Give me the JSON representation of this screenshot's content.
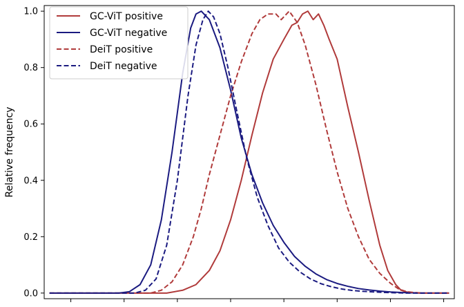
{
  "chart_data": {
    "type": "line",
    "title": "",
    "xlabel": "",
    "ylabel": "Relative frequency",
    "xlim": [
      -0.1,
      7.6
    ],
    "ylim": [
      -0.02,
      1.02
    ],
    "yticks": [
      0.0,
      0.2,
      0.4,
      0.6,
      0.8,
      1.0
    ],
    "ytick_labels": [
      "0.0",
      "0.2",
      "0.4",
      "0.6",
      "0.8",
      "1.0"
    ],
    "xticks": [
      0.4,
      1.4,
      2.4,
      3.4,
      4.4,
      5.4,
      6.4,
      7.4
    ],
    "grid": false,
    "legend_position": "top-left",
    "series": [
      {
        "name": "GC-ViT positive",
        "color": "#b03a3a",
        "dash": "solid",
        "x": [
          0,
          2.2,
          2.5,
          2.75,
          3.0,
          3.2,
          3.4,
          3.6,
          3.8,
          4.0,
          4.2,
          4.4,
          4.55,
          4.65,
          4.75,
          4.85,
          4.95,
          5.05,
          5.15,
          5.25,
          5.4,
          5.6,
          5.8,
          6.0,
          6.2,
          6.35,
          6.5,
          6.6,
          6.7,
          6.85,
          7.0,
          7.2,
          7.5
        ],
        "y": [
          0,
          0,
          0.01,
          0.03,
          0.08,
          0.15,
          0.26,
          0.4,
          0.56,
          0.71,
          0.83,
          0.9,
          0.95,
          0.96,
          0.99,
          1.0,
          0.97,
          0.99,
          0.95,
          0.9,
          0.83,
          0.66,
          0.5,
          0.33,
          0.17,
          0.08,
          0.03,
          0.01,
          0.004,
          0.001,
          0,
          0,
          0
        ]
      },
      {
        "name": "GC-ViT negative",
        "color": "#1a1a80",
        "dash": "solid",
        "x": [
          0,
          1.3,
          1.5,
          1.7,
          1.9,
          2.1,
          2.3,
          2.5,
          2.65,
          2.75,
          2.85,
          3.0,
          3.2,
          3.4,
          3.6,
          3.8,
          4.0,
          4.2,
          4.4,
          4.6,
          4.8,
          5.0,
          5.2,
          5.4,
          5.6,
          5.8,
          6.0,
          6.2,
          6.4,
          6.6,
          6.8,
          7.0,
          7.5
        ],
        "y": [
          0,
          0,
          0.005,
          0.03,
          0.1,
          0.26,
          0.5,
          0.78,
          0.94,
          0.99,
          1.0,
          0.97,
          0.87,
          0.72,
          0.55,
          0.42,
          0.32,
          0.24,
          0.18,
          0.13,
          0.095,
          0.068,
          0.048,
          0.034,
          0.024,
          0.016,
          0.011,
          0.007,
          0.004,
          0.002,
          0.001,
          0,
          0
        ]
      },
      {
        "name": "DeiT positive",
        "color": "#b03a3a",
        "dash": "dashed",
        "x": [
          0,
          1.9,
          2.1,
          2.3,
          2.5,
          2.7,
          2.85,
          3.0,
          3.2,
          3.4,
          3.6,
          3.8,
          3.95,
          4.1,
          4.25,
          4.35,
          4.5,
          4.65,
          4.8,
          5.0,
          5.2,
          5.4,
          5.6,
          5.8,
          6.0,
          6.2,
          6.4,
          6.55,
          6.7,
          6.85,
          7.0,
          7.5
        ],
        "y": [
          0,
          0,
          0.01,
          0.04,
          0.1,
          0.2,
          0.3,
          0.42,
          0.56,
          0.7,
          0.82,
          0.92,
          0.97,
          0.99,
          0.99,
          0.97,
          1.0,
          0.96,
          0.88,
          0.74,
          0.58,
          0.43,
          0.3,
          0.2,
          0.12,
          0.07,
          0.035,
          0.015,
          0.005,
          0.002,
          0,
          0
        ]
      },
      {
        "name": "DeiT negative",
        "color": "#1a1a80",
        "dash": "dashed",
        "x": [
          0,
          1.6,
          1.8,
          2.0,
          2.2,
          2.4,
          2.6,
          2.75,
          2.88,
          2.98,
          3.08,
          3.2,
          3.35,
          3.5,
          3.7,
          3.9,
          4.1,
          4.3,
          4.5,
          4.7,
          4.9,
          5.1,
          5.3,
          5.5,
          5.7,
          5.9,
          6.1,
          6.3,
          6.5,
          6.7,
          7.0,
          7.5
        ],
        "y": [
          0,
          0,
          0.01,
          0.05,
          0.17,
          0.4,
          0.7,
          0.88,
          0.97,
          1.0,
          0.98,
          0.92,
          0.8,
          0.66,
          0.48,
          0.34,
          0.24,
          0.16,
          0.11,
          0.075,
          0.05,
          0.033,
          0.022,
          0.014,
          0.009,
          0.006,
          0.004,
          0.002,
          0.001,
          0,
          0,
          0
        ]
      }
    ]
  }
}
